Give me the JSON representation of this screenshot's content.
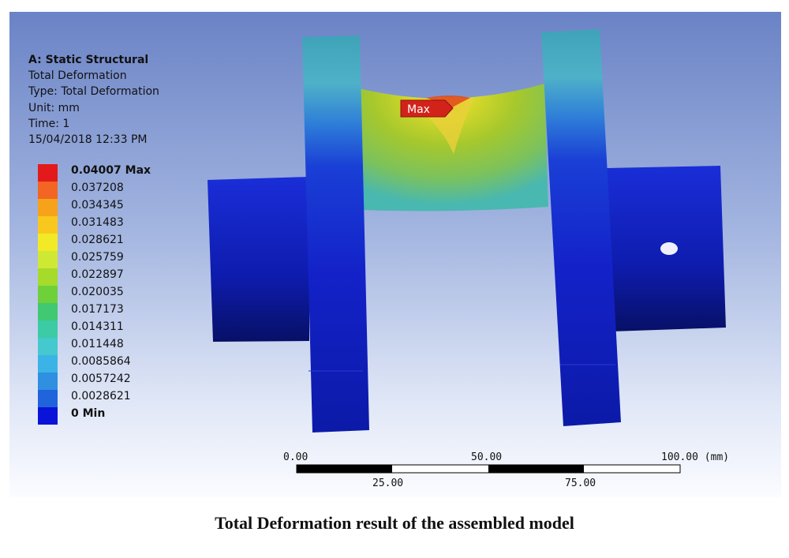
{
  "info": {
    "analysis": "A: Static Structural",
    "result": "Total Deformation",
    "type": "Type: Total Deformation",
    "unit": "Unit: mm",
    "time": "Time: 1",
    "date": "15/04/2018 12:33 PM"
  },
  "legend": [
    {
      "label": "0.04007 Max",
      "color": "#e31a1c",
      "bold": true
    },
    {
      "label": "0.037208",
      "color": "#f26522",
      "bold": false
    },
    {
      "label": "0.034345",
      "color": "#f7a21b",
      "bold": false
    },
    {
      "label": "0.031483",
      "color": "#f9c81e",
      "bold": false
    },
    {
      "label": "0.028621",
      "color": "#f2ea27",
      "bold": false
    },
    {
      "label": "0.025759",
      "color": "#cfe833",
      "bold": false
    },
    {
      "label": "0.022897",
      "color": "#a6db2c",
      "bold": false
    },
    {
      "label": "0.020035",
      "color": "#6fd13a",
      "bold": false
    },
    {
      "label": "0.017173",
      "color": "#41c872",
      "bold": false
    },
    {
      "label": "0.014311",
      "color": "#3ccba5",
      "bold": false
    },
    {
      "label": "0.011448",
      "color": "#44c9cf",
      "bold": false
    },
    {
      "label": "0.0085864",
      "color": "#3cb3e6",
      "bold": false
    },
    {
      "label": "0.0057242",
      "color": "#2f8fe0",
      "bold": false
    },
    {
      "label": "0.0028621",
      "color": "#2064dc",
      "bold": false
    },
    {
      "label": "0 Min",
      "color": "#0a14d8",
      "bold": true
    }
  ],
  "max_marker": "Max",
  "scale": {
    "top_labels": [
      "0.00",
      "50.00",
      "100.00 (mm)"
    ],
    "bottom_labels": [
      "25.00",
      "75.00"
    ]
  },
  "caption": "Total Deformation result of the assembled model"
}
